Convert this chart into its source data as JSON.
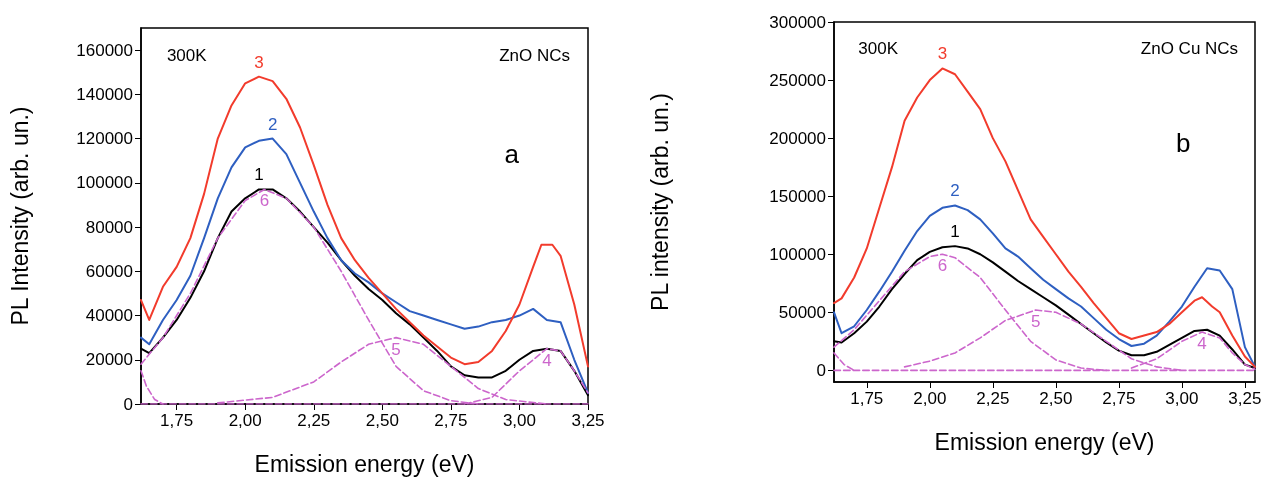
{
  "chart_data": [
    {
      "type": "line",
      "xlabel": "Emission energy (eV)",
      "ylabel": "PL Intensity (arb. un.)",
      "xlim": [
        1.62,
        3.25
      ],
      "ylim": [
        0,
        170000
      ],
      "xticks": [
        {
          "value": 1.75,
          "label": "1,75"
        },
        {
          "value": 2.0,
          "label": "2,00"
        },
        {
          "value": 2.25,
          "label": "2,25"
        },
        {
          "value": 2.5,
          "label": "2,50"
        },
        {
          "value": 2.75,
          "label": "2,75"
        },
        {
          "value": 3.0,
          "label": "3,00"
        },
        {
          "value": 3.25,
          "label": "3,25"
        }
      ],
      "yticks": [
        0,
        20000,
        40000,
        60000,
        80000,
        100000,
        120000,
        140000,
        160000
      ],
      "grid": false,
      "marker": "none",
      "annotations": [
        "300K",
        "ZnO NCs",
        "a"
      ],
      "series": [
        {
          "name": "6",
          "color": "#cc66cc",
          "line_style": "dashed",
          "x": [
            1.62,
            1.7,
            1.8,
            1.9,
            2.0,
            2.07,
            2.15,
            2.25,
            2.35,
            2.45,
            2.55,
            2.65,
            2.75,
            2.85
          ],
          "values": [
            18000,
            30000,
            50000,
            75000,
            92000,
            97000,
            93000,
            80000,
            60000,
            38000,
            17000,
            6000,
            1500,
            0
          ]
        },
        {
          "name": "5",
          "color": "#cc66cc",
          "line_style": "dashed",
          "x": [
            1.9,
            2.1,
            2.25,
            2.35,
            2.45,
            2.55,
            2.65,
            2.75,
            2.85,
            2.95,
            3.1
          ],
          "values": [
            500,
            3000,
            10000,
            19000,
            27000,
            30000,
            27000,
            17000,
            7000,
            2000,
            0
          ]
        },
        {
          "name": "4",
          "color": "#cc66cc",
          "line_style": "dashed",
          "x": [
            2.8,
            2.9,
            3.0,
            3.1,
            3.15,
            3.2,
            3.25
          ],
          "values": [
            0,
            3000,
            15000,
            25000,
            24000,
            15000,
            5000
          ]
        },
        {
          "color": "#cc66cc",
          "line_style": "dashed",
          "x": [
            1.62,
            1.64,
            1.67,
            1.7
          ],
          "values": [
            15000,
            8000,
            2000,
            0
          ]
        },
        {
          "color": "#cc66cc",
          "line_style": "dashed",
          "x": [
            1.62,
            3.25
          ],
          "values": [
            0,
            0
          ]
        },
        {
          "name": "1",
          "color": "#000000",
          "line_style": "solid",
          "x": [
            1.62,
            1.65,
            1.7,
            1.75,
            1.8,
            1.85,
            1.9,
            1.95,
            2.0,
            2.05,
            2.1,
            2.15,
            2.2,
            2.25,
            2.3,
            2.35,
            2.4,
            2.45,
            2.5,
            2.55,
            2.6,
            2.65,
            2.7,
            2.75,
            2.8,
            2.85,
            2.9,
            2.95,
            3.0,
            3.05,
            3.1,
            3.15,
            3.2,
            3.25
          ],
          "values": [
            25000,
            23000,
            30000,
            38000,
            48000,
            60000,
            75000,
            87000,
            93000,
            97000,
            97000,
            93000,
            87000,
            80000,
            73000,
            65000,
            58000,
            52000,
            47000,
            41000,
            36000,
            30000,
            24000,
            17000,
            13000,
            12000,
            12000,
            15000,
            20000,
            24000,
            25000,
            24000,
            15000,
            4000
          ]
        },
        {
          "name": "2",
          "color": "#2e5fc1",
          "line_style": "solid",
          "x": [
            1.62,
            1.65,
            1.7,
            1.75,
            1.8,
            1.85,
            1.9,
            1.95,
            2.0,
            2.05,
            2.1,
            2.15,
            2.2,
            2.25,
            2.3,
            2.35,
            2.4,
            2.45,
            2.5,
            2.55,
            2.6,
            2.65,
            2.7,
            2.75,
            2.8,
            2.85,
            2.9,
            2.95,
            3.0,
            3.05,
            3.1,
            3.15,
            3.2,
            3.25
          ],
          "values": [
            30000,
            27000,
            38000,
            47000,
            58000,
            75000,
            93000,
            107000,
            116000,
            119000,
            120000,
            113000,
            100000,
            87000,
            75000,
            65000,
            59000,
            55000,
            50000,
            46000,
            42000,
            40000,
            38000,
            36000,
            34000,
            35000,
            37000,
            38000,
            40000,
            43000,
            38000,
            37000,
            20000,
            5000
          ]
        },
        {
          "name": "3",
          "color": "#f23b2c",
          "line_style": "solid",
          "x": [
            1.62,
            1.65,
            1.7,
            1.75,
            1.8,
            1.85,
            1.9,
            1.95,
            2.0,
            2.05,
            2.1,
            2.15,
            2.2,
            2.25,
            2.3,
            2.35,
            2.4,
            2.45,
            2.5,
            2.55,
            2.6,
            2.65,
            2.7,
            2.75,
            2.8,
            2.85,
            2.9,
            2.95,
            3.0,
            3.05,
            3.08,
            3.12,
            3.15,
            3.2,
            3.25
          ],
          "values": [
            47000,
            38000,
            53000,
            62000,
            75000,
            95000,
            120000,
            135000,
            145000,
            148000,
            146000,
            138000,
            125000,
            108000,
            90000,
            75000,
            65000,
            57000,
            50000,
            43000,
            37000,
            31000,
            26000,
            21000,
            18000,
            19000,
            24000,
            33000,
            45000,
            62000,
            72000,
            72000,
            67000,
            45000,
            17000
          ]
        }
      ]
    },
    {
      "type": "line",
      "xlabel": "Emission energy (eV)",
      "ylabel": "PL intensity (arb. un.)",
      "xlim": [
        1.62,
        3.29
      ],
      "ylim": [
        -10000,
        300000
      ],
      "xticks": [
        {
          "value": 1.75,
          "label": "1,75"
        },
        {
          "value": 2.0,
          "label": "2,00"
        },
        {
          "value": 2.25,
          "label": "2,25"
        },
        {
          "value": 2.5,
          "label": "2,50"
        },
        {
          "value": 2.75,
          "label": "2,75"
        },
        {
          "value": 3.0,
          "label": "3,00"
        },
        {
          "value": 3.25,
          "label": "3,25"
        }
      ],
      "yticks": [
        0,
        50000,
        100000,
        150000,
        200000,
        250000,
        300000
      ],
      "grid": false,
      "marker": "none",
      "annotations": [
        "300K",
        "ZnO Cu NCs",
        "b"
      ],
      "series": [
        {
          "name": "6",
          "color": "#cc66cc",
          "line_style": "dashed",
          "x": [
            1.62,
            1.7,
            1.8,
            1.9,
            2.0,
            2.05,
            2.1,
            2.2,
            2.3,
            2.4,
            2.5,
            2.6,
            2.7
          ],
          "values": [
            20000,
            35000,
            60000,
            85000,
            98000,
            100000,
            97000,
            80000,
            52000,
            25000,
            9000,
            2000,
            0
          ]
        },
        {
          "name": "5",
          "color": "#cc66cc",
          "line_style": "dashed",
          "x": [
            1.9,
            2.0,
            2.1,
            2.2,
            2.3,
            2.42,
            2.5,
            2.6,
            2.7,
            2.8,
            2.9,
            3.0
          ],
          "values": [
            3000,
            8000,
            15000,
            28000,
            43000,
            52000,
            50000,
            40000,
            25000,
            10000,
            3000,
            0
          ]
        },
        {
          "name": "4",
          "color": "#cc66cc",
          "line_style": "dashed",
          "x": [
            2.8,
            2.9,
            3.0,
            3.08,
            3.15,
            3.2,
            3.25,
            3.29
          ],
          "values": [
            2000,
            10000,
            25000,
            33000,
            28000,
            15000,
            5000,
            1000
          ]
        },
        {
          "color": "#cc66cc",
          "line_style": "dashed",
          "x": [
            1.62,
            1.66,
            1.7
          ],
          "values": [
            15000,
            5000,
            0
          ]
        },
        {
          "color": "#cc66cc",
          "line_style": "dashed",
          "x": [
            1.62,
            3.29
          ],
          "values": [
            0,
            0
          ]
        },
        {
          "name": "1",
          "color": "#000000",
          "line_style": "solid",
          "x": [
            1.62,
            1.65,
            1.7,
            1.75,
            1.8,
            1.85,
            1.9,
            1.95,
            2.0,
            2.05,
            2.1,
            2.15,
            2.2,
            2.25,
            2.3,
            2.35,
            2.4,
            2.45,
            2.5,
            2.55,
            2.6,
            2.65,
            2.7,
            2.75,
            2.8,
            2.85,
            2.9,
            2.95,
            3.0,
            3.05,
            3.1,
            3.15,
            3.2,
            3.25,
            3.29
          ],
          "values": [
            25000,
            24000,
            32000,
            42000,
            55000,
            70000,
            83000,
            95000,
            102000,
            106000,
            107000,
            105000,
            100000,
            93000,
            85000,
            77000,
            70000,
            63000,
            56000,
            48000,
            40000,
            32000,
            24000,
            17000,
            13000,
            13000,
            16000,
            22000,
            28000,
            34000,
            35000,
            30000,
            18000,
            5000,
            2000
          ]
        },
        {
          "name": "2",
          "color": "#2e5fc1",
          "line_style": "solid",
          "x": [
            1.62,
            1.65,
            1.7,
            1.75,
            1.8,
            1.85,
            1.9,
            1.95,
            2.0,
            2.05,
            2.1,
            2.15,
            2.2,
            2.25,
            2.3,
            2.35,
            2.4,
            2.45,
            2.5,
            2.55,
            2.6,
            2.65,
            2.7,
            2.75,
            2.8,
            2.85,
            2.9,
            2.95,
            3.0,
            3.05,
            3.1,
            3.15,
            3.2,
            3.25,
            3.29
          ],
          "values": [
            50000,
            32000,
            38000,
            52000,
            68000,
            85000,
            103000,
            120000,
            133000,
            140000,
            142000,
            138000,
            130000,
            118000,
            105000,
            98000,
            88000,
            78000,
            70000,
            62000,
            55000,
            45000,
            35000,
            27000,
            21000,
            23000,
            30000,
            42000,
            55000,
            72000,
            88000,
            86000,
            70000,
            20000,
            3000
          ]
        },
        {
          "name": "3",
          "color": "#f23b2c",
          "line_style": "solid",
          "x": [
            1.62,
            1.65,
            1.7,
            1.75,
            1.8,
            1.85,
            1.9,
            1.95,
            2.0,
            2.05,
            2.1,
            2.15,
            2.2,
            2.25,
            2.3,
            2.35,
            2.4,
            2.45,
            2.5,
            2.55,
            2.6,
            2.65,
            2.7,
            2.75,
            2.8,
            2.85,
            2.9,
            2.95,
            3.0,
            3.05,
            3.08,
            3.12,
            3.15,
            3.2,
            3.25,
            3.29
          ],
          "values": [
            58000,
            62000,
            80000,
            105000,
            140000,
            175000,
            215000,
            235000,
            250000,
            260000,
            255000,
            240000,
            225000,
            200000,
            180000,
            155000,
            130000,
            115000,
            100000,
            85000,
            72000,
            58000,
            45000,
            32000,
            27000,
            30000,
            33000,
            40000,
            50000,
            60000,
            63000,
            55000,
            50000,
            30000,
            12000,
            3000
          ]
        }
      ]
    }
  ]
}
